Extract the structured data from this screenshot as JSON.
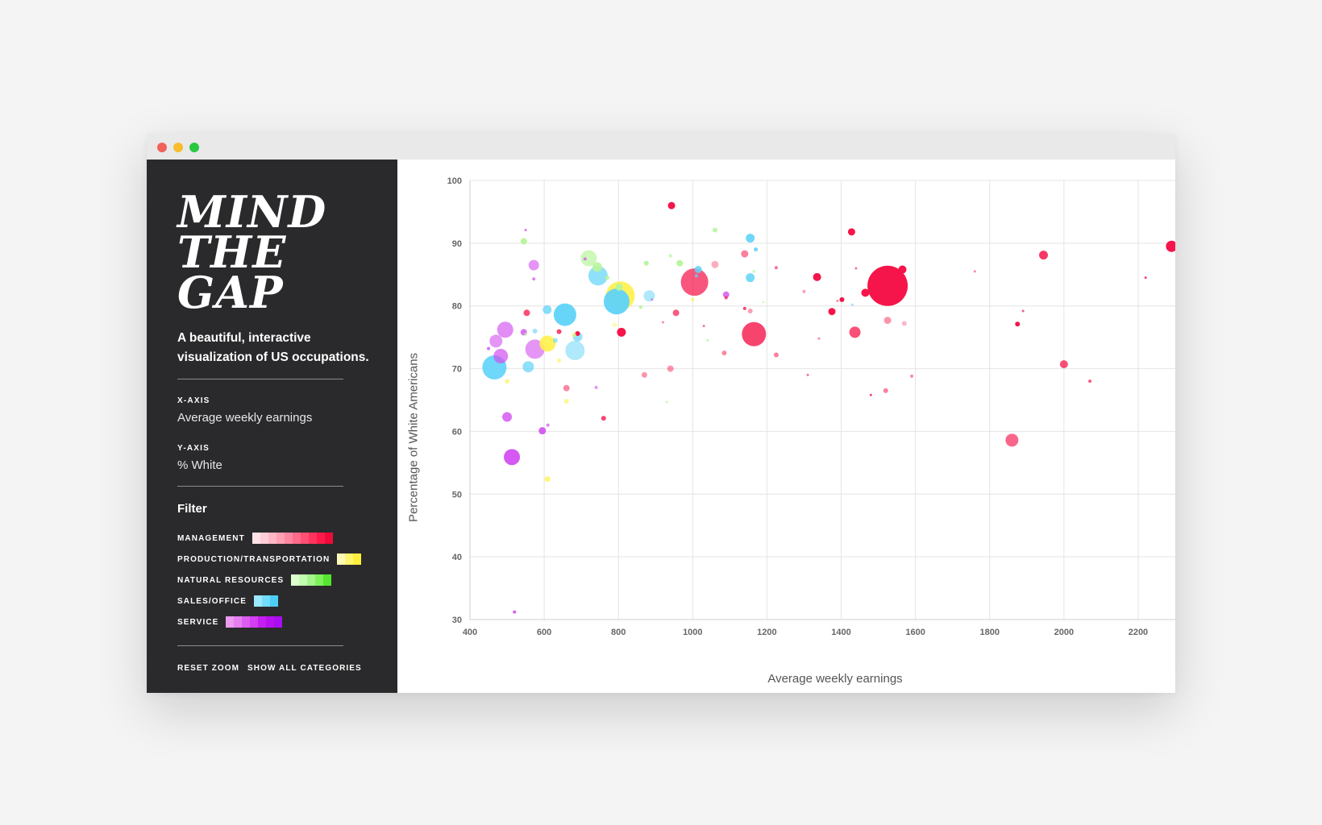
{
  "window": {
    "traffic_lights": [
      "#f2605a",
      "#f7bd2e",
      "#2ac840"
    ]
  },
  "sidebar": {
    "logo_lines": [
      "MIND",
      "THE",
      "GAP"
    ],
    "subtitle": "A beautiful, interactive visualization of US occupations.",
    "x_axis_caption": "X-AXIS",
    "x_axis_value": "Average weekly earnings",
    "y_axis_caption": "Y-AXIS",
    "y_axis_value": "% White",
    "filter_title": "Filter",
    "filters": [
      {
        "label": "MANAGEMENT",
        "swatches": [
          "#ffe2e8",
          "#ffcdd7",
          "#ffb7c6",
          "#ffa0b4",
          "#ff86a0",
          "#ff6b8a",
          "#ff5073",
          "#ff345e",
          "#ff1a4a",
          "#f00a3a"
        ]
      },
      {
        "label": "PRODUCTION/TRANSPORTATION",
        "swatches": [
          "#fffbb8",
          "#fff56f",
          "#ffef3b"
        ]
      },
      {
        "label": "NATURAL RESOURCES",
        "swatches": [
          "#ddffd0",
          "#c2fcb0",
          "#a3f58c",
          "#7ef15a",
          "#55e62f"
        ]
      },
      {
        "label": "SALES/OFFICE",
        "swatches": [
          "#9be8ff",
          "#72dcff",
          "#4ccdf6"
        ]
      },
      {
        "label": "SERVICE",
        "swatches": [
          "#eb9bf0",
          "#e47ff0",
          "#db5cf0",
          "#d23ef0",
          "#c51ef0",
          "#b711f0",
          "#a90df0"
        ]
      }
    ],
    "reset_zoom": "RESET ZOOM",
    "show_all": "SHOW ALL CATEGORIES"
  },
  "chart_data": {
    "type": "scatter",
    "xlabel": "Average weekly earnings",
    "ylabel": "Percentage of White Americans",
    "xlim": [
      400,
      2250
    ],
    "ylim": [
      30,
      100
    ],
    "xticks": [
      400,
      600,
      800,
      1000,
      1200,
      1400,
      1600,
      1800,
      2000,
      2200
    ],
    "yticks": [
      30,
      40,
      50,
      60,
      70,
      80,
      90,
      100
    ],
    "grid": true,
    "category_colors": {
      "management": "#f5154a",
      "production": "#fff14a",
      "natural": "#b9f59d",
      "sales": "#5fd3f8",
      "service": "#d24ff0"
    },
    "points": [
      {
        "x": 1525,
        "y": 83.2,
        "r": 25,
        "cat": "management",
        "a": 1
      },
      {
        "x": 1005,
        "y": 83.8,
        "r": 17,
        "cat": "management",
        "a": 0.72
      },
      {
        "x": 1165,
        "y": 75.5,
        "r": 15,
        "cat": "management",
        "a": 0.8
      },
      {
        "x": 943,
        "y": 96.0,
        "r": 4.5,
        "cat": "management",
        "a": 1
      },
      {
        "x": 1428,
        "y": 91.8,
        "r": 4.5,
        "cat": "management",
        "a": 1
      },
      {
        "x": 2290,
        "y": 89.5,
        "r": 7,
        "cat": "management",
        "a": 1
      },
      {
        "x": 1945,
        "y": 88.1,
        "r": 5.5,
        "cat": "management",
        "a": 0.85
      },
      {
        "x": 1565,
        "y": 85.8,
        "r": 5,
        "cat": "management",
        "a": 1
      },
      {
        "x": 1465,
        "y": 82.1,
        "r": 5,
        "cat": "management",
        "a": 1
      },
      {
        "x": 1335,
        "y": 84.6,
        "r": 5,
        "cat": "management",
        "a": 1
      },
      {
        "x": 1375,
        "y": 79.1,
        "r": 4.5,
        "cat": "management",
        "a": 1
      },
      {
        "x": 1402,
        "y": 81.0,
        "r": 3,
        "cat": "management",
        "a": 1
      },
      {
        "x": 1437,
        "y": 75.8,
        "r": 7,
        "cat": "management",
        "a": 0.75
      },
      {
        "x": 1525,
        "y": 77.7,
        "r": 4.5,
        "cat": "management",
        "a": 0.45
      },
      {
        "x": 1570,
        "y": 77.2,
        "r": 3,
        "cat": "management",
        "a": 0.3
      },
      {
        "x": 1860,
        "y": 58.6,
        "r": 8,
        "cat": "management",
        "a": 0.65
      },
      {
        "x": 2000,
        "y": 70.7,
        "r": 5,
        "cat": "management",
        "a": 0.75
      },
      {
        "x": 1875,
        "y": 77.1,
        "r": 3,
        "cat": "management",
        "a": 1
      },
      {
        "x": 2070,
        "y": 68.0,
        "r": 2,
        "cat": "management",
        "a": 0.7
      },
      {
        "x": 1520,
        "y": 66.5,
        "r": 3,
        "cat": "management",
        "a": 0.55
      },
      {
        "x": 1590,
        "y": 68.8,
        "r": 2,
        "cat": "management",
        "a": 0.5
      },
      {
        "x": 1480,
        "y": 65.8,
        "r": 1.5,
        "cat": "management",
        "a": 0.8
      },
      {
        "x": 1140,
        "y": 88.3,
        "r": 4.5,
        "cat": "management",
        "a": 0.55
      },
      {
        "x": 1060,
        "y": 86.6,
        "r": 4.5,
        "cat": "management",
        "a": 0.35
      },
      {
        "x": 808,
        "y": 75.8,
        "r": 5.5,
        "cat": "management",
        "a": 1
      },
      {
        "x": 955,
        "y": 78.9,
        "r": 4,
        "cat": "management",
        "a": 0.7
      },
      {
        "x": 940,
        "y": 70.0,
        "r": 4,
        "cat": "management",
        "a": 0.45
      },
      {
        "x": 870,
        "y": 69.0,
        "r": 3.5,
        "cat": "management",
        "a": 0.45
      },
      {
        "x": 760,
        "y": 62.1,
        "r": 3,
        "cat": "management",
        "a": 0.8
      },
      {
        "x": 660,
        "y": 66.9,
        "r": 4,
        "cat": "management",
        "a": 0.5
      },
      {
        "x": 553,
        "y": 78.9,
        "r": 4,
        "cat": "management",
        "a": 0.75
      },
      {
        "x": 640,
        "y": 75.9,
        "r": 3,
        "cat": "management",
        "a": 0.8
      },
      {
        "x": 690,
        "y": 75.6,
        "r": 3,
        "cat": "management",
        "a": 1
      },
      {
        "x": 1225,
        "y": 72.2,
        "r": 3,
        "cat": "management",
        "a": 0.55
      },
      {
        "x": 1085,
        "y": 72.5,
        "r": 3,
        "cat": "management",
        "a": 0.5
      },
      {
        "x": 1155,
        "y": 79.2,
        "r": 3,
        "cat": "management",
        "a": 0.4
      },
      {
        "x": 1140,
        "y": 79.6,
        "r": 2,
        "cat": "management",
        "a": 0.8
      },
      {
        "x": 1225,
        "y": 86.1,
        "r": 2,
        "cat": "management",
        "a": 0.6
      },
      {
        "x": 1300,
        "y": 82.3,
        "r": 2,
        "cat": "management",
        "a": 0.4
      },
      {
        "x": 1340,
        "y": 74.8,
        "r": 1.5,
        "cat": "management",
        "a": 0.5
      },
      {
        "x": 1390,
        "y": 80.8,
        "r": 1.5,
        "cat": "management",
        "a": 0.5
      },
      {
        "x": 1440,
        "y": 86.0,
        "r": 1.5,
        "cat": "management",
        "a": 0.6
      },
      {
        "x": 1760,
        "y": 85.5,
        "r": 1.5,
        "cat": "management",
        "a": 0.5
      },
      {
        "x": 1890,
        "y": 79.2,
        "r": 1.5,
        "cat": "management",
        "a": 0.7
      },
      {
        "x": 2220,
        "y": 84.5,
        "r": 1.5,
        "cat": "management",
        "a": 0.8
      },
      {
        "x": 1090,
        "y": 81.3,
        "r": 2,
        "cat": "management",
        "a": 0.7
      },
      {
        "x": 920,
        "y": 77.4,
        "r": 1.5,
        "cat": "management",
        "a": 0.5
      },
      {
        "x": 1030,
        "y": 76.8,
        "r": 1.5,
        "cat": "management",
        "a": 0.6
      },
      {
        "x": 1310,
        "y": 69.0,
        "r": 1.5,
        "cat": "management",
        "a": 0.6
      },
      {
        "x": 805,
        "y": 81.6,
        "r": 18,
        "cat": "production",
        "a": 0.9
      },
      {
        "x": 609,
        "y": 74.0,
        "r": 10,
        "cat": "production",
        "a": 0.9
      },
      {
        "x": 609,
        "y": 52.4,
        "r": 3.5,
        "cat": "production",
        "a": 0.75
      },
      {
        "x": 500,
        "y": 68.0,
        "r": 3,
        "cat": "production",
        "a": 0.6
      },
      {
        "x": 660,
        "y": 64.8,
        "r": 3,
        "cat": "production",
        "a": 0.6
      },
      {
        "x": 640,
        "y": 71.3,
        "r": 2.5,
        "cat": "production",
        "a": 0.6
      },
      {
        "x": 680,
        "y": 75.4,
        "r": 3,
        "cat": "production",
        "a": 0.5
      },
      {
        "x": 790,
        "y": 77.0,
        "r": 3,
        "cat": "production",
        "a": 0.4
      },
      {
        "x": 1000,
        "y": 81.0,
        "r": 2,
        "cat": "production",
        "a": 0.7
      },
      {
        "x": 720,
        "y": 87.6,
        "r": 10,
        "cat": "natural",
        "a": 0.7
      },
      {
        "x": 743,
        "y": 86.2,
        "r": 6,
        "cat": "natural",
        "a": 0.9
      },
      {
        "x": 545,
        "y": 90.3,
        "r": 4,
        "cat": "natural",
        "a": 1
      },
      {
        "x": 802,
        "y": 83.0,
        "r": 4.5,
        "cat": "natural",
        "a": 1
      },
      {
        "x": 965,
        "y": 86.8,
        "r": 4,
        "cat": "natural",
        "a": 1
      },
      {
        "x": 1060,
        "y": 92.1,
        "r": 3,
        "cat": "natural",
        "a": 0.9
      },
      {
        "x": 875,
        "y": 86.8,
        "r": 3,
        "cat": "natural",
        "a": 1
      },
      {
        "x": 770,
        "y": 84.5,
        "r": 2.5,
        "cat": "natural",
        "a": 1
      },
      {
        "x": 860,
        "y": 79.8,
        "r": 2,
        "cat": "natural",
        "a": 1
      },
      {
        "x": 940,
        "y": 88.0,
        "r": 2,
        "cat": "natural",
        "a": 0.8
      },
      {
        "x": 1165,
        "y": 85.5,
        "r": 2,
        "cat": "natural",
        "a": 0.6
      },
      {
        "x": 1190,
        "y": 80.6,
        "r": 1.5,
        "cat": "natural",
        "a": 0.6
      },
      {
        "x": 550,
        "y": 75.5,
        "r": 2,
        "cat": "natural",
        "a": 0.6
      },
      {
        "x": 930,
        "y": 64.7,
        "r": 1.5,
        "cat": "natural",
        "a": 0.7
      },
      {
        "x": 1040,
        "y": 74.5,
        "r": 1.5,
        "cat": "natural",
        "a": 0.8
      },
      {
        "x": 466,
        "y": 70.2,
        "r": 15,
        "cat": "sales",
        "a": 0.9
      },
      {
        "x": 656,
        "y": 78.6,
        "r": 14,
        "cat": "sales",
        "a": 0.95
      },
      {
        "x": 795,
        "y": 80.7,
        "r": 16,
        "cat": "sales",
        "a": 0.95
      },
      {
        "x": 745,
        "y": 84.8,
        "r": 12,
        "cat": "sales",
        "a": 0.7
      },
      {
        "x": 683,
        "y": 72.9,
        "r": 12,
        "cat": "sales",
        "a": 0.5
      },
      {
        "x": 557,
        "y": 70.3,
        "r": 7,
        "cat": "sales",
        "a": 0.7
      },
      {
        "x": 883,
        "y": 81.6,
        "r": 7,
        "cat": "sales",
        "a": 0.5
      },
      {
        "x": 1155,
        "y": 90.8,
        "r": 5.5,
        "cat": "sales",
        "a": 0.9
      },
      {
        "x": 1155,
        "y": 84.5,
        "r": 5.5,
        "cat": "sales",
        "a": 0.85
      },
      {
        "x": 1015,
        "y": 85.8,
        "r": 4.5,
        "cat": "sales",
        "a": 0.85
      },
      {
        "x": 608,
        "y": 79.4,
        "r": 5.5,
        "cat": "sales",
        "a": 0.75
      },
      {
        "x": 690,
        "y": 75.1,
        "r": 6,
        "cat": "sales",
        "a": 0.65
      },
      {
        "x": 575,
        "y": 76.0,
        "r": 3,
        "cat": "sales",
        "a": 0.6
      },
      {
        "x": 1170,
        "y": 89.0,
        "r": 2.5,
        "cat": "sales",
        "a": 0.9
      },
      {
        "x": 630,
        "y": 74.5,
        "r": 3,
        "cat": "sales",
        "a": 0.6
      },
      {
        "x": 1010,
        "y": 84.8,
        "r": 2,
        "cat": "sales",
        "a": 0.8
      },
      {
        "x": 1430,
        "y": 80.2,
        "r": 1.5,
        "cat": "sales",
        "a": 0.6
      },
      {
        "x": 513,
        "y": 55.9,
        "r": 10,
        "cat": "service",
        "a": 0.95
      },
      {
        "x": 483,
        "y": 72.0,
        "r": 9,
        "cat": "service",
        "a": 0.7
      },
      {
        "x": 575,
        "y": 73.1,
        "r": 12,
        "cat": "service",
        "a": 0.6
      },
      {
        "x": 495,
        "y": 76.2,
        "r": 10,
        "cat": "service",
        "a": 0.65
      },
      {
        "x": 470,
        "y": 74.4,
        "r": 8,
        "cat": "service",
        "a": 0.6
      },
      {
        "x": 572,
        "y": 86.5,
        "r": 6.5,
        "cat": "service",
        "a": 0.6
      },
      {
        "x": 500,
        "y": 62.3,
        "r": 6,
        "cat": "service",
        "a": 0.8
      },
      {
        "x": 595,
        "y": 60.1,
        "r": 4.5,
        "cat": "service",
        "a": 0.9
      },
      {
        "x": 545,
        "y": 75.8,
        "r": 4,
        "cat": "service",
        "a": 0.8
      },
      {
        "x": 1090,
        "y": 81.8,
        "r": 4,
        "cat": "service",
        "a": 0.8
      },
      {
        "x": 520,
        "y": 31.2,
        "r": 2,
        "cat": "service",
        "a": 0.9
      },
      {
        "x": 450,
        "y": 73.2,
        "r": 2,
        "cat": "service",
        "a": 0.8
      },
      {
        "x": 550,
        "y": 92.1,
        "r": 1.5,
        "cat": "service",
        "a": 0.8
      },
      {
        "x": 572,
        "y": 84.3,
        "r": 2,
        "cat": "service",
        "a": 0.7
      },
      {
        "x": 610,
        "y": 61.0,
        "r": 2,
        "cat": "service",
        "a": 0.7
      },
      {
        "x": 740,
        "y": 67.0,
        "r": 2,
        "cat": "service",
        "a": 0.6
      },
      {
        "x": 710,
        "y": 87.5,
        "r": 2,
        "cat": "service",
        "a": 0.7
      },
      {
        "x": 890,
        "y": 81.0,
        "r": 1.5,
        "cat": "service",
        "a": 0.6
      }
    ]
  }
}
